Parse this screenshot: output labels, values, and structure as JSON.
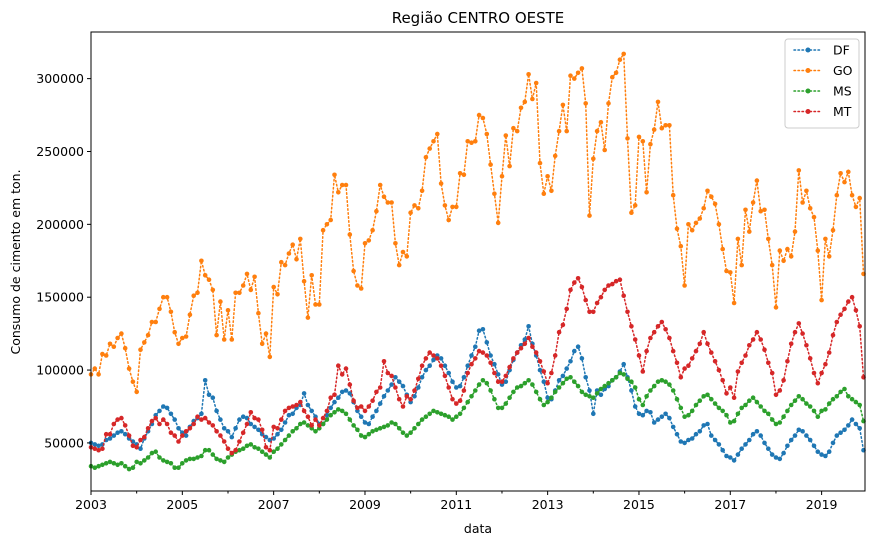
{
  "chart_data": {
    "type": "line",
    "title": "Região CENTRO OESTE",
    "xlabel": "data",
    "ylabel": "Consumo de cimento em ton.",
    "xlim": [
      2003.0,
      2019.95
    ],
    "ylim": [
      17000,
      332000
    ],
    "x_ticks": [
      "2003",
      "2005",
      "2007",
      "2009",
      "2011",
      "2013",
      "2015",
      "2017",
      "2019"
    ],
    "y_ticks": [
      "50000",
      "100000",
      "150000",
      "200000",
      "250000",
      "300000"
    ],
    "grid": false,
    "legend_position": "top-right",
    "line_style": "dotted with circle markers",
    "series": [
      {
        "name": "DF",
        "color": "#1f77b4",
        "values_by_year": {
          "2003": [
            50000,
            49000,
            48000,
            49000,
            52000,
            53000,
            55000,
            57000,
            58000,
            56000,
            53000,
            51000
          ],
          "2004": [
            49000,
            46000,
            53000,
            58000,
            63000,
            69000,
            72000,
            75000,
            74000,
            70000,
            66000,
            60000
          ],
          "2005": [
            57000,
            55000,
            61000,
            65000,
            67000,
            70000,
            93000,
            83000,
            81000,
            72000,
            66000,
            60000
          ],
          "2006": [
            58000,
            54000,
            60000,
            66000,
            68000,
            67000,
            63000,
            61000,
            59000,
            56000,
            54000,
            52000
          ],
          "2007": [
            53000,
            56000,
            59000,
            64000,
            69000,
            70000,
            74000,
            76000,
            84000,
            76000,
            72000,
            68000
          ],
          "2008": [
            63000,
            63000,
            69000,
            74000,
            78000,
            81000,
            85000,
            86000,
            84000,
            78000,
            72000,
            68000
          ],
          "2009": [
            64000,
            63000,
            68000,
            72000,
            77000,
            82000,
            86000,
            90000,
            95000,
            92000,
            89000,
            83000
          ],
          "2010": [
            78000,
            82000,
            88000,
            95000,
            100000,
            103000,
            107000,
            110000,
            108000,
            103000,
            98000,
            92000
          ],
          "2011": [
            88000,
            89000,
            95000,
            103000,
            110000,
            116000,
            127000,
            128000,
            119000,
            110000,
            104000,
            97000
          ],
          "2012": [
            90000,
            92000,
            100000,
            107000,
            112000,
            117000,
            121000,
            130000,
            118000,
            110000,
            100000,
            92000
          ],
          "2013": [
            81000,
            80000,
            86000,
            93000,
            96000,
            101000,
            106000,
            113000,
            116000,
            108000,
            95000,
            86000
          ],
          "2014": [
            70000,
            86000,
            83000,
            87000,
            89000,
            93000,
            95000,
            99000,
            104000,
            95000,
            86000,
            75000
          ],
          "2015": [
            70000,
            69000,
            72000,
            71000,
            64000,
            66000,
            68000,
            70000,
            67000,
            61000,
            56000,
            51000
          ],
          "2016": [
            50000,
            52000,
            53000,
            56000,
            58000,
            62000,
            63000,
            55000,
            52000,
            49000,
            45000,
            41000
          ],
          "2017": [
            40000,
            38000,
            42000,
            46000,
            49000,
            52000,
            56000,
            58000,
            55000,
            50000,
            46000,
            42000
          ],
          "2018": [
            40000,
            39000,
            43000,
            48000,
            52000,
            55000,
            59000,
            58000,
            55000,
            52000,
            48000,
            44000
          ],
          "2019": [
            42000,
            41000,
            44000,
            50000,
            55000,
            57000,
            59000,
            62000,
            66000,
            63000,
            60000,
            45000
          ]
        }
      },
      {
        "name": "GO",
        "color": "#ff7f0e",
        "values_by_year": {
          "2003": [
            97000,
            101000,
            97000,
            111000,
            110000,
            118000,
            116000,
            122000,
            125000,
            115000,
            101000,
            92000
          ],
          "2004": [
            85000,
            114000,
            119000,
            124000,
            133000,
            133000,
            142000,
            150000,
            150000,
            140000,
            126000,
            118000
          ],
          "2005": [
            122000,
            123000,
            138000,
            151000,
            153000,
            175000,
            165000,
            162000,
            155000,
            124000,
            147000,
            121000
          ],
          "2006": [
            141000,
            121000,
            153000,
            153000,
            158000,
            166000,
            155000,
            164000,
            139000,
            118000,
            125000,
            109000
          ],
          "2007": [
            157000,
            152000,
            174000,
            172000,
            180000,
            186000,
            176000,
            190000,
            161000,
            136000,
            165000,
            145000
          ],
          "2008": [
            145000,
            196000,
            200000,
            203000,
            234000,
            222000,
            227000,
            227000,
            193000,
            168000,
            158000,
            156000
          ],
          "2009": [
            187000,
            189000,
            196000,
            209000,
            227000,
            219000,
            215000,
            215000,
            187000,
            172000,
            181000,
            178000
          ],
          "2010": [
            208000,
            213000,
            211000,
            223000,
            246000,
            252000,
            257000,
            262000,
            228000,
            213000,
            203000,
            212000
          ],
          "2011": [
            212000,
            235000,
            234000,
            257000,
            256000,
            257000,
            275000,
            273000,
            262000,
            241000,
            221000,
            201000
          ],
          "2012": [
            233000,
            261000,
            240000,
            266000,
            264000,
            280000,
            284000,
            303000,
            286000,
            297000,
            242000,
            221000
          ],
          "2013": [
            233000,
            223000,
            247000,
            264000,
            282000,
            264000,
            302000,
            300000,
            304000,
            307000,
            283000,
            206000
          ],
          "2014": [
            245000,
            264000,
            270000,
            251000,
            283000,
            301000,
            304000,
            313000,
            317000,
            259000,
            208000,
            213000
          ],
          "2015": [
            260000,
            257000,
            222000,
            255000,
            265000,
            284000,
            266000,
            268000,
            268000,
            220000,
            197000,
            185000
          ],
          "2016": [
            158000,
            200000,
            196000,
            201000,
            204000,
            211000,
            223000,
            219000,
            214000,
            200000,
            183000,
            168000
          ],
          "2017": [
            167000,
            146000,
            190000,
            172000,
            210000,
            195000,
            215000,
            230000,
            209000,
            210000,
            190000,
            172000
          ],
          "2018": [
            143000,
            182000,
            175000,
            183000,
            178000,
            195000,
            237000,
            215000,
            223000,
            211000,
            205000,
            182000
          ],
          "2019": [
            148000,
            190000,
            178000,
            196000,
            220000,
            235000,
            229000,
            236000,
            220000,
            212000,
            218000,
            166000
          ]
        }
      },
      {
        "name": "MS",
        "color": "#2ca02c",
        "values_by_year": {
          "2003": [
            34000,
            33000,
            34000,
            35000,
            36000,
            37000,
            36000,
            35000,
            36000,
            34000,
            32000,
            33000
          ],
          "2004": [
            37000,
            36000,
            38000,
            40000,
            43000,
            44000,
            40000,
            38000,
            37000,
            36000,
            33000,
            33000
          ],
          "2005": [
            36000,
            38000,
            39000,
            39000,
            40000,
            41000,
            45000,
            45000,
            42000,
            39000,
            38000,
            37000
          ],
          "2006": [
            40000,
            42000,
            44000,
            45000,
            46000,
            48000,
            49000,
            47000,
            46000,
            44000,
            42000,
            40000
          ],
          "2007": [
            44000,
            46000,
            49000,
            52000,
            55000,
            58000,
            60000,
            63000,
            64000,
            62000,
            60000,
            58000
          ],
          "2008": [
            60000,
            63000,
            66000,
            69000,
            71000,
            73000,
            72000,
            70000,
            66000,
            62000,
            59000,
            55000
          ],
          "2009": [
            54000,
            56000,
            58000,
            59000,
            60000,
            61000,
            62000,
            64000,
            63000,
            60000,
            57000,
            55000
          ],
          "2010": [
            57000,
            60000,
            63000,
            66000,
            68000,
            70000,
            72000,
            71000,
            70000,
            69000,
            68000,
            66000
          ],
          "2011": [
            68000,
            70000,
            74000,
            78000,
            82000,
            86000,
            90000,
            93000,
            91000,
            86000,
            80000,
            74000
          ],
          "2012": [
            74000,
            77000,
            81000,
            85000,
            88000,
            89000,
            91000,
            93000,
            90000,
            85000,
            80000,
            76000
          ],
          "2013": [
            78000,
            81000,
            85000,
            88000,
            91000,
            94000,
            95000,
            92000,
            89000,
            85000,
            83000,
            82000
          ],
          "2014": [
            81000,
            84000,
            87000,
            89000,
            91000,
            93000,
            95000,
            98000,
            97000,
            94000,
            92000,
            88000
          ],
          "2015": [
            80000,
            76000,
            82000,
            86000,
            89000,
            92000,
            93000,
            92000,
            90000,
            86000,
            80000,
            74000
          ],
          "2016": [
            68000,
            69000,
            72000,
            76000,
            79000,
            82000,
            83000,
            80000,
            77000,
            74000,
            72000,
            69000
          ],
          "2017": [
            64000,
            65000,
            70000,
            74000,
            76000,
            79000,
            81000,
            78000,
            75000,
            72000,
            70000,
            66000
          ],
          "2018": [
            63000,
            64000,
            68000,
            72000,
            76000,
            79000,
            82000,
            80000,
            77000,
            75000,
            72000,
            68000
          ],
          "2019": [
            72000,
            73000,
            77000,
            80000,
            82000,
            85000,
            87000,
            82000,
            80000,
            78000,
            76000,
            65000
          ]
        }
      },
      {
        "name": "MT",
        "color": "#d62728",
        "values_by_year": {
          "2003": [
            47000,
            46000,
            45000,
            46000,
            56000,
            56000,
            63000,
            66000,
            67000,
            62000,
            55000,
            48000
          ],
          "2004": [
            47000,
            52000,
            54000,
            60000,
            65000,
            67000,
            63000,
            66000,
            63000,
            57000,
            55000,
            51000
          ],
          "2005": [
            55000,
            58000,
            60000,
            63000,
            68000,
            66000,
            67000,
            64000,
            62000,
            58000,
            55000,
            51000
          ],
          "2006": [
            46000,
            43000,
            45000,
            51000,
            57000,
            63000,
            71000,
            67000,
            66000,
            59000,
            47000,
            45000
          ],
          "2007": [
            61000,
            60000,
            66000,
            72000,
            74000,
            75000,
            76000,
            78000,
            72000,
            68000,
            62000,
            66000
          ],
          "2008": [
            62000,
            67000,
            72000,
            81000,
            83000,
            103000,
            97000,
            101000,
            90000,
            79000,
            74000,
            75000
          ],
          "2009": [
            72000,
            75000,
            79000,
            85000,
            88000,
            106000,
            98000,
            96000,
            88000,
            80000,
            75000,
            82000
          ],
          "2010": [
            80000,
            86000,
            94000,
            103000,
            108000,
            112000,
            110000,
            108000,
            103000,
            96000,
            88000,
            80000
          ],
          "2011": [
            77000,
            79000,
            86000,
            98000,
            104000,
            108000,
            113000,
            112000,
            110000,
            105000,
            98000,
            92000
          ],
          "2012": [
            92000,
            96000,
            102000,
            108000,
            112000,
            115000,
            118000,
            122000,
            116000,
            112000,
            106000,
            99000
          ],
          "2013": [
            91000,
            98000,
            110000,
            126000,
            131000,
            142000,
            155000,
            160000,
            163000,
            157000,
            148000,
            140000
          ],
          "2014": [
            140000,
            146000,
            150000,
            155000,
            158000,
            159000,
            161000,
            162000,
            151000,
            140000,
            130000,
            121000
          ],
          "2015": [
            110000,
            99000,
            113000,
            122000,
            126000,
            130000,
            133000,
            128000,
            122000,
            113000,
            105000,
            95000
          ],
          "2016": [
            101000,
            103000,
            108000,
            113000,
            118000,
            126000,
            118000,
            112000,
            106000,
            100000,
            93000,
            84000
          ],
          "2017": [
            88000,
            81000,
            99000,
            105000,
            110000,
            117000,
            121000,
            126000,
            121000,
            114000,
            105000,
            98000
          ],
          "2018": [
            83000,
            86000,
            93000,
            106000,
            118000,
            126000,
            132000,
            125000,
            117000,
            108000,
            98000,
            91000
          ],
          "2019": [
            98000,
            104000,
            112000,
            124000,
            133000,
            138000,
            142000,
            147000,
            150000,
            141000,
            130000,
            95000
          ]
        }
      }
    ]
  }
}
